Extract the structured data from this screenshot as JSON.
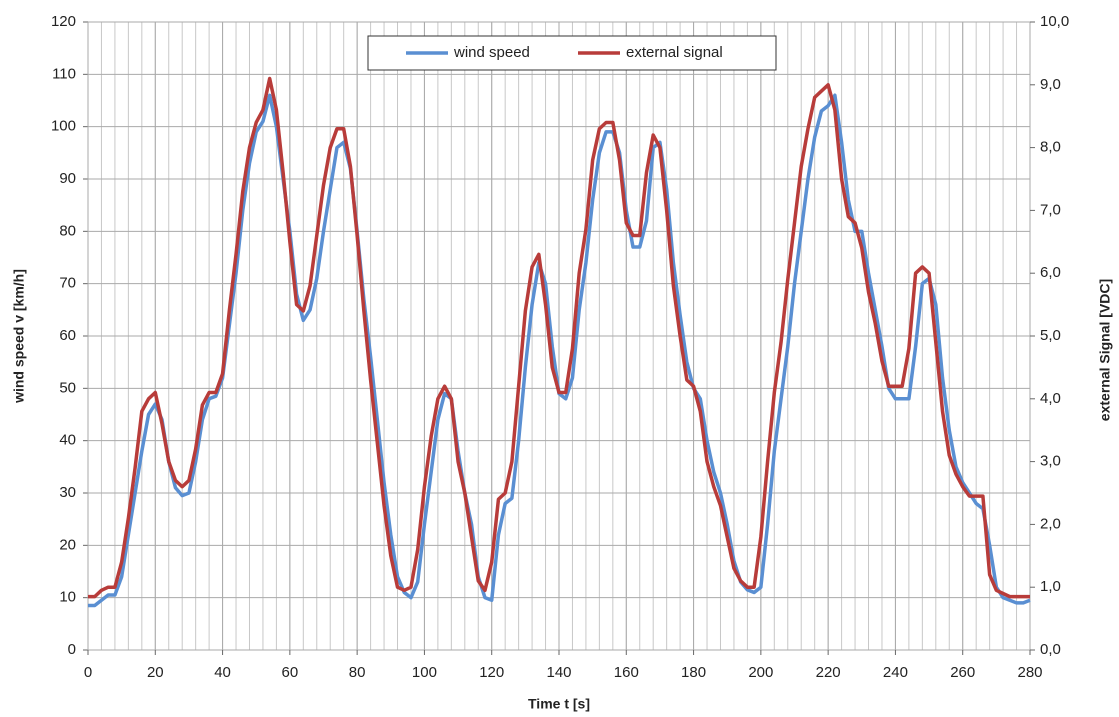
{
  "chart_data": {
    "type": "line",
    "xlabel": "Time t [s]",
    "ylabel": "wind speed v [km/h]",
    "y2label": "external Signal [VDC]",
    "x": [
      0,
      2,
      4,
      6,
      8,
      10,
      12,
      14,
      16,
      18,
      20,
      22,
      24,
      26,
      28,
      30,
      32,
      34,
      36,
      38,
      40,
      42,
      44,
      46,
      48,
      50,
      52,
      54,
      56,
      58,
      60,
      62,
      64,
      66,
      68,
      70,
      72,
      74,
      76,
      78,
      80,
      82,
      84,
      86,
      88,
      90,
      92,
      94,
      96,
      98,
      100,
      102,
      104,
      106,
      108,
      110,
      112,
      114,
      116,
      118,
      120,
      122,
      124,
      126,
      128,
      130,
      132,
      134,
      136,
      138,
      140,
      142,
      144,
      146,
      148,
      150,
      152,
      154,
      156,
      158,
      160,
      162,
      164,
      166,
      168,
      170,
      172,
      174,
      176,
      178,
      180,
      182,
      184,
      186,
      188,
      190,
      192,
      194,
      196,
      198,
      200,
      202,
      204,
      206,
      208,
      210,
      212,
      214,
      216,
      218,
      220,
      222,
      224,
      226,
      228,
      230,
      232,
      234,
      236,
      238,
      240,
      242,
      244,
      246,
      248,
      250,
      252,
      254,
      256,
      258,
      260,
      262,
      264,
      266,
      268,
      270,
      272,
      274,
      276,
      278,
      280
    ],
    "series": [
      {
        "name": "wind speed",
        "color": "#5a8fd2",
        "axis": "y",
        "values": [
          8.5,
          8.5,
          9.5,
          10.5,
          10.5,
          14,
          22,
          30,
          38,
          45,
          47,
          44,
          36,
          31,
          29.5,
          30,
          36,
          44,
          48,
          48.5,
          52,
          62,
          72,
          84,
          93,
          99,
          101,
          106,
          100,
          90,
          80,
          68,
          63,
          65,
          71,
          80,
          88,
          96,
          97,
          92,
          80,
          67,
          56,
          44,
          32,
          22,
          14,
          11,
          10,
          13,
          24,
          34,
          44,
          49,
          48,
          38,
          30,
          24,
          14,
          10,
          9.5,
          22,
          28,
          29,
          40,
          54,
          66,
          74,
          70,
          58,
          49,
          48,
          52,
          65,
          74,
          86,
          95,
          99,
          99,
          95,
          84,
          77,
          77,
          82,
          96,
          97,
          88,
          74,
          64,
          55,
          50,
          48,
          40,
          34,
          30,
          24,
          17,
          13,
          11.5,
          11,
          12,
          24,
          38,
          48,
          58,
          70,
          80,
          90,
          98,
          103,
          104,
          106,
          97,
          86,
          80,
          80,
          72,
          65,
          58,
          50,
          48,
          48,
          48,
          58,
          70,
          71,
          66,
          52,
          42,
          35,
          32,
          30,
          28,
          27,
          20,
          12,
          10,
          9.5,
          9,
          9,
          9.5
        ]
      },
      {
        "name": "external signal",
        "color": "#b83c3a",
        "axis": "y2",
        "values": [
          0.85,
          0.85,
          0.95,
          1.0,
          1.0,
          1.4,
          2.1,
          2.9,
          3.8,
          4.0,
          4.1,
          3.6,
          3.0,
          2.7,
          2.6,
          2.7,
          3.2,
          3.9,
          4.1,
          4.1,
          4.4,
          5.4,
          6.3,
          7.3,
          8.0,
          8.4,
          8.6,
          9.1,
          8.6,
          7.6,
          6.5,
          5.5,
          5.4,
          5.8,
          6.6,
          7.4,
          8.0,
          8.3,
          8.3,
          7.7,
          6.6,
          5.4,
          4.3,
          3.3,
          2.3,
          1.5,
          1.0,
          0.95,
          1.0,
          1.6,
          2.6,
          3.4,
          4.0,
          4.2,
          4.0,
          3.0,
          2.5,
          1.8,
          1.1,
          0.95,
          1.4,
          2.4,
          2.5,
          3.0,
          4.2,
          5.4,
          6.1,
          6.3,
          5.5,
          4.5,
          4.1,
          4.1,
          4.8,
          6.0,
          6.7,
          7.8,
          8.3,
          8.4,
          8.4,
          7.8,
          6.8,
          6.6,
          6.6,
          7.6,
          8.2,
          8.0,
          7.0,
          5.8,
          5.0,
          4.3,
          4.2,
          3.8,
          3.0,
          2.6,
          2.3,
          1.8,
          1.3,
          1.1,
          1.0,
          1.0,
          1.8,
          3.0,
          4.1,
          4.9,
          5.9,
          6.8,
          7.7,
          8.3,
          8.8,
          8.9,
          9.0,
          8.6,
          7.5,
          6.9,
          6.8,
          6.4,
          5.7,
          5.2,
          4.6,
          4.2,
          4.2,
          4.2,
          4.8,
          6.0,
          6.1,
          6.0,
          4.9,
          3.8,
          3.1,
          2.8,
          2.6,
          2.45,
          2.45,
          2.45,
          1.2,
          0.95,
          0.9,
          0.85,
          0.85,
          0.85,
          0.85
        ]
      }
    ],
    "xlim": [
      0,
      280
    ],
    "xticks": [
      0,
      20,
      40,
      60,
      80,
      100,
      120,
      140,
      160,
      180,
      200,
      220,
      240,
      260,
      280
    ],
    "x_minor_grid": 4,
    "ylim": [
      0,
      120
    ],
    "yticks": [
      0,
      10,
      20,
      30,
      40,
      50,
      60,
      70,
      80,
      90,
      100,
      110,
      120
    ],
    "y2lim": [
      0,
      10
    ],
    "y2ticks": [
      {
        "value": 0,
        "label": "0,0"
      },
      {
        "value": 1,
        "label": "1,0"
      },
      {
        "value": 2,
        "label": "2,0"
      },
      {
        "value": 3,
        "label": "3,0"
      },
      {
        "value": 4,
        "label": "4,0"
      },
      {
        "value": 5,
        "label": "5,0"
      },
      {
        "value": 6,
        "label": "6,0"
      },
      {
        "value": 7,
        "label": "7,0"
      },
      {
        "value": 8,
        "label": "8,0"
      },
      {
        "value": 9,
        "label": "9,0"
      },
      {
        "value": 10,
        "label": "10,0"
      }
    ],
    "grid": true,
    "legend": "top"
  }
}
